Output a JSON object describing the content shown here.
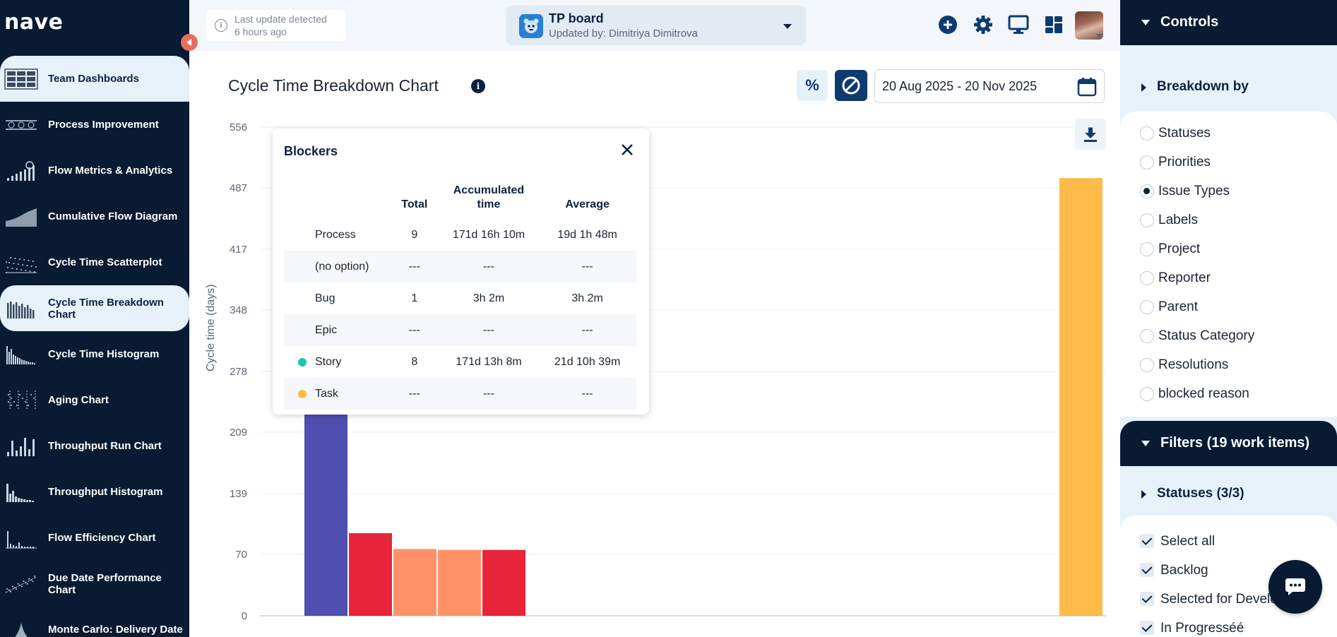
{
  "app": {
    "logo": "nave"
  },
  "sidebar": {
    "items": [
      {
        "label": "Team Dashboards",
        "icon": "dashboard-grid-icon"
      },
      {
        "label": "Process Improvement",
        "icon": "process-icon"
      },
      {
        "label": "Flow Metrics & Analytics",
        "icon": "analytics-icon"
      },
      {
        "label": "Cumulative Flow Diagram",
        "icon": "area-chart-icon"
      },
      {
        "label": "Cycle Time Scatterplot",
        "icon": "scatter-icon"
      },
      {
        "label": "Cycle Time Breakdown Chart",
        "icon": "breakdown-icon",
        "active": true
      },
      {
        "label": "Cycle Time Histogram",
        "icon": "histogram-icon"
      },
      {
        "label": "Aging Chart",
        "icon": "aging-icon"
      },
      {
        "label": "Throughput Run Chart",
        "icon": "run-chart-icon"
      },
      {
        "label": "Throughput Histogram",
        "icon": "throughput-histogram-icon"
      },
      {
        "label": "Flow Efficiency Chart",
        "icon": "flow-efficiency-icon"
      },
      {
        "label": "Due Date Performance Chart",
        "icon": "due-date-icon"
      },
      {
        "label": "Monte Carlo: Delivery Date",
        "icon": "monte-carlo-icon"
      }
    ]
  },
  "topbar": {
    "update_line1": "Last update detected",
    "update_line2": "6 hours ago",
    "board_title": "TP board",
    "board_sub": "Updated by: Dimitriya Dimitrova"
  },
  "chart_header": {
    "title": "Cycle Time Breakdown Chart",
    "percent_label": "%",
    "date_range": "20 Aug 2025 - 20 Nov 2025"
  },
  "tooltip": {
    "title": "Blockers",
    "headers": [
      "",
      "Total",
      "Accumulated time",
      "Average"
    ],
    "rows": [
      {
        "name": "Process",
        "total": "9",
        "accumulated": "171d 16h 10m",
        "average": "19d 1h 48m",
        "dot": ""
      },
      {
        "name": "(no option)",
        "total": "---",
        "accumulated": "---",
        "average": "---",
        "dot": ""
      },
      {
        "name": "Bug",
        "total": "1",
        "accumulated": "3h 2m",
        "average": "3h 2m",
        "dot": ""
      },
      {
        "name": "Epic",
        "total": "---",
        "accumulated": "---",
        "average": "---",
        "dot": ""
      },
      {
        "name": "Story",
        "total": "8",
        "accumulated": "171d 13h 8m",
        "average": "21d 10h 39m",
        "dot": "#1ec6b4"
      },
      {
        "name": "Task",
        "total": "---",
        "accumulated": "---",
        "average": "---",
        "dot": "#ffbb4a"
      }
    ]
  },
  "chart_data": {
    "type": "bar",
    "ylabel": "Cycle time (days)",
    "ylim": [
      0,
      556
    ],
    "y_ticks": [
      "0",
      "70",
      "139",
      "209",
      "278",
      "348",
      "417",
      "487",
      "556"
    ],
    "bars": [
      {
        "value": 240,
        "color": "#4f4fb0"
      },
      {
        "value": 94,
        "color": "#e8243a"
      },
      {
        "value": 76,
        "color": "#ff9169"
      },
      {
        "value": 75,
        "color": "#ff9169"
      },
      {
        "value": 75,
        "color": "#e8243a"
      },
      {
        "value": 498,
        "color": "#ffbb4a"
      }
    ],
    "grid": true
  },
  "right_panel": {
    "controls_title": "Controls",
    "breakdown_title": "Breakdown by",
    "breakdown_options": [
      "Statuses",
      "Priorities",
      "Issue Types",
      "Labels",
      "Project",
      "Reporter",
      "Parent",
      "Status Category",
      "Resolutions",
      "blocked reason"
    ],
    "breakdown_selected": 2,
    "filters_title": "Filters (19 work items)",
    "statuses_title": "Statuses  (3/3)",
    "status_options": [
      "Select all",
      "Backlog",
      "Selected for Development",
      "In Progresséé"
    ]
  }
}
